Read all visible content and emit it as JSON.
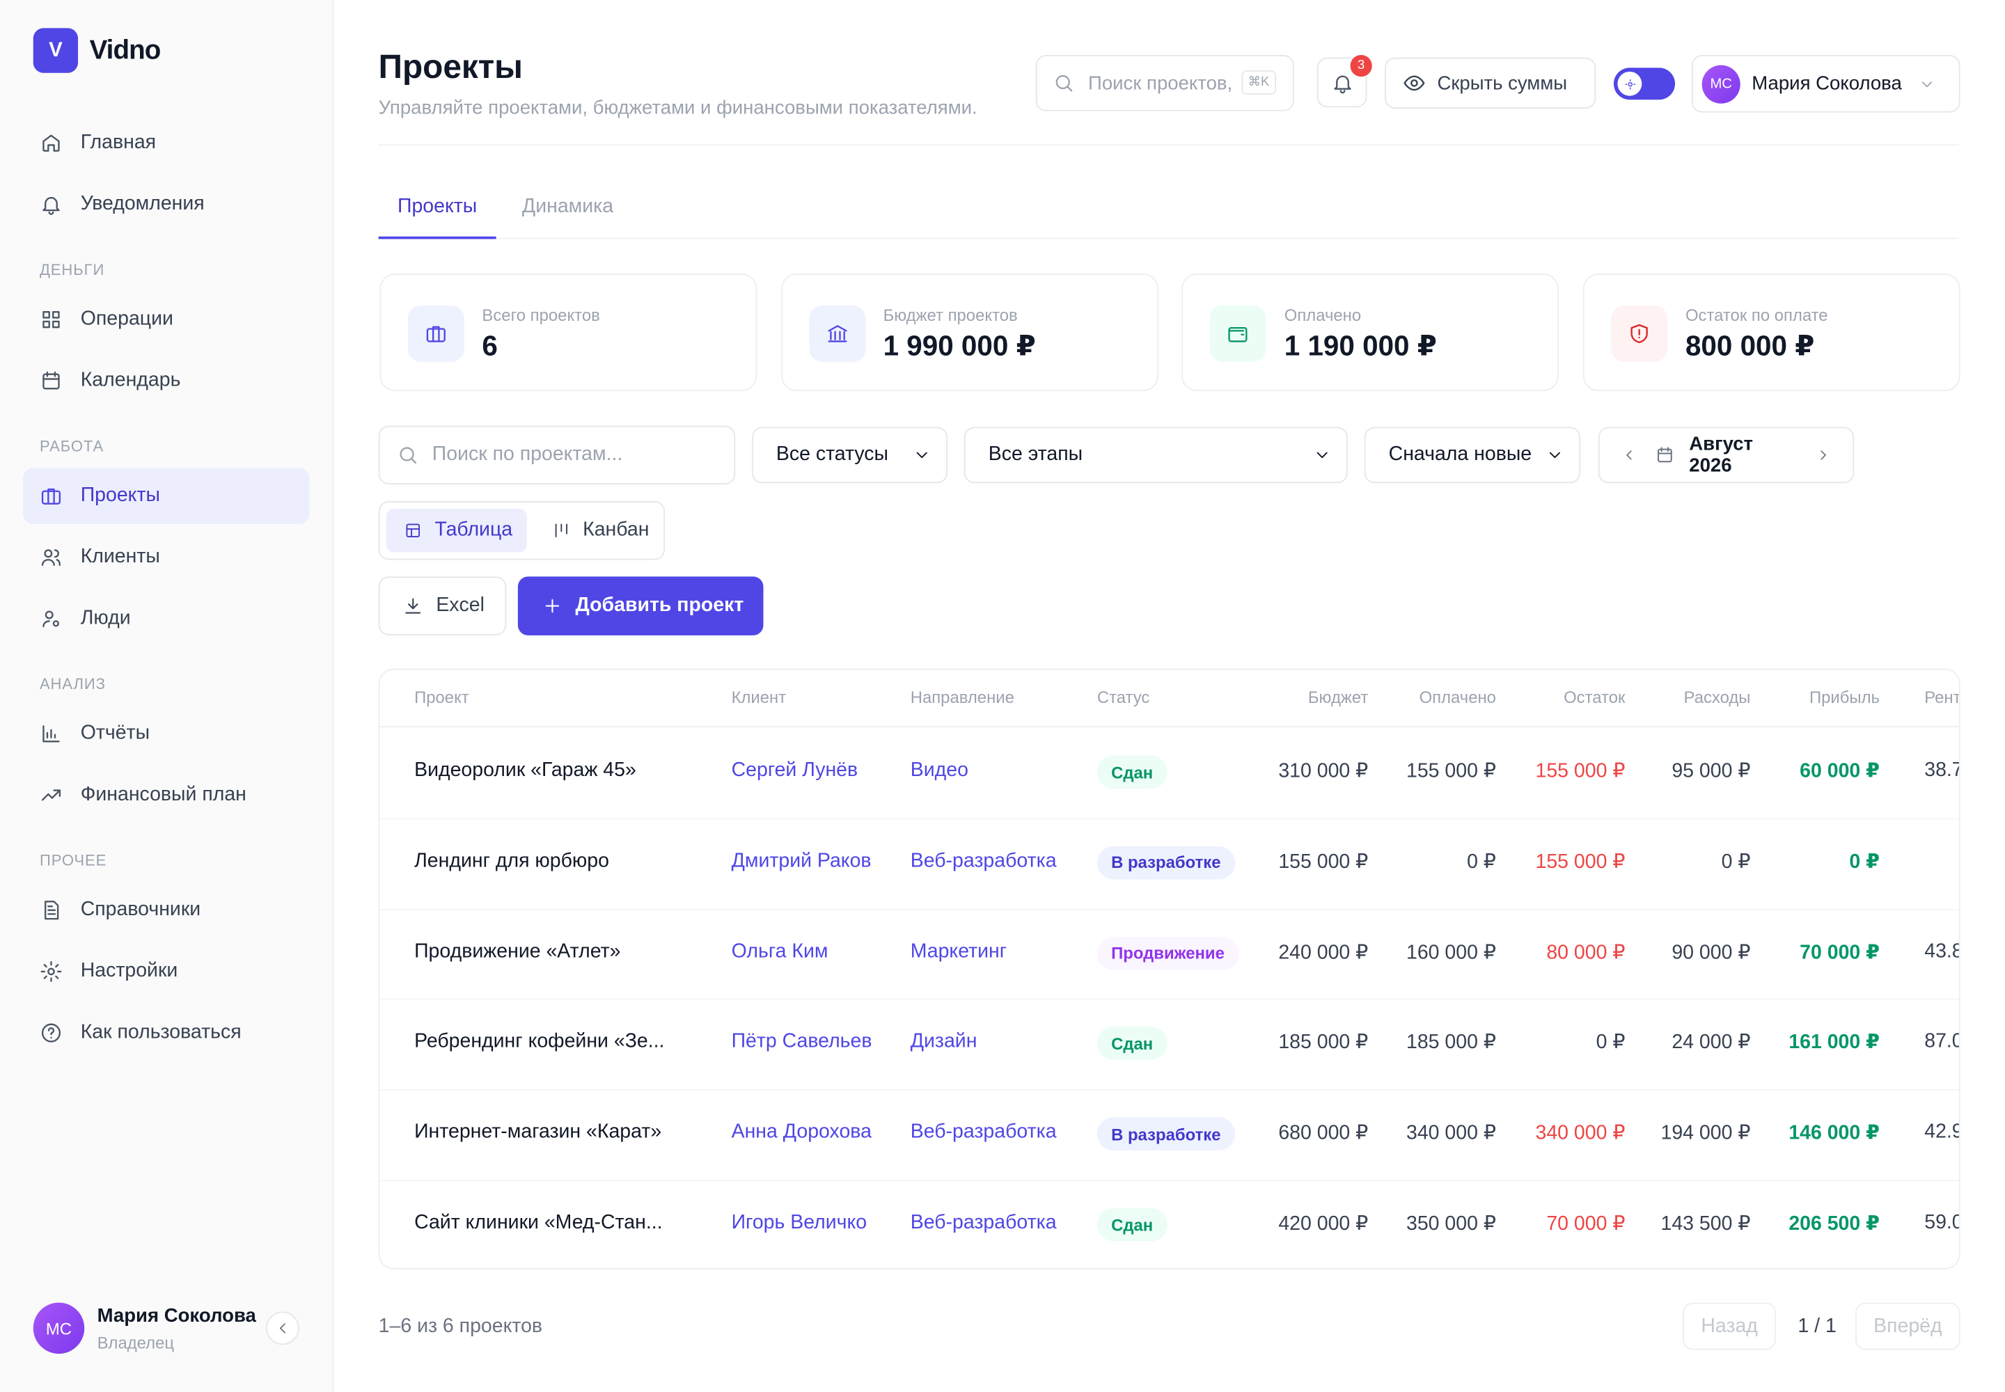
{
  "brand": {
    "logo": "V",
    "name": "Vidno"
  },
  "sidebar": {
    "sections": [
      {
        "items": [
          {
            "label": "Главная",
            "icon": "home"
          },
          {
            "label": "Уведомления",
            "icon": "bell"
          }
        ]
      },
      {
        "title": "ДЕНЬГИ",
        "items": [
          {
            "label": "Операции",
            "icon": "grid"
          },
          {
            "label": "Календарь",
            "icon": "cal"
          }
        ]
      },
      {
        "title": "РАБОТА",
        "items": [
          {
            "label": "Проекты",
            "icon": "case",
            "active": true
          },
          {
            "label": "Клиенты",
            "icon": "users"
          },
          {
            "label": "Люди",
            "icon": "user"
          }
        ]
      },
      {
        "title": "АНАЛИЗ",
        "items": [
          {
            "label": "Отчёты",
            "icon": "chart"
          },
          {
            "label": "Финансовый план",
            "icon": "trend"
          }
        ]
      },
      {
        "title": "ПРОЧЕЕ",
        "items": [
          {
            "label": "Справочники",
            "icon": "doc"
          },
          {
            "label": "Настройки",
            "icon": "gear"
          },
          {
            "label": "Как пользоваться",
            "icon": "help"
          }
        ]
      }
    ]
  },
  "user": {
    "initials": "МС",
    "name": "Мария Соколова",
    "role": "Владелец"
  },
  "header": {
    "title": "Проекты",
    "subtitle": "Управляйте проектами, бюджетами и финансовыми показателями.",
    "search_placeholder": "Поиск проектов,",
    "shortcut": "⌘K",
    "notifications": 3,
    "hide_sums": "Скрыть суммы",
    "user_initials": "МС",
    "user_name": "Мария Соколова"
  },
  "tabs": [
    {
      "label": "Проекты",
      "active": true
    },
    {
      "label": "Динамика"
    }
  ],
  "stats": [
    {
      "label": "Всего проектов",
      "value": "6",
      "tone": "blue",
      "icon": "case"
    },
    {
      "label": "Бюджет проектов",
      "value": "1 990 000 ₽",
      "tone": "blue",
      "icon": "bank"
    },
    {
      "label": "Оплачено",
      "value": "1 190 000 ₽",
      "tone": "green",
      "icon": "wallet"
    },
    {
      "label": "Остаток по оплате",
      "value": "800 000 ₽",
      "tone": "red",
      "icon": "shield"
    }
  ],
  "filters": {
    "search_placeholder": "Поиск по проектам...",
    "status": "Все статусы",
    "stage": "Все этапы",
    "sort": "Сначала новые",
    "period": "Август 2026"
  },
  "views": [
    {
      "label": "Таблица",
      "active": true
    },
    {
      "label": "Канбан"
    }
  ],
  "actions": {
    "excel": "Excel",
    "add": "Добавить проект"
  },
  "table": {
    "columns": [
      "Проект",
      "Клиент",
      "Направление",
      "Статус",
      "Бюджет",
      "Оплачено",
      "Остаток",
      "Расходы",
      "Прибыль",
      "Рента"
    ],
    "rows": [
      {
        "project": "Видеоролик «Гараж 45»",
        "client": "Сергей Лунёв",
        "direction": "Видео",
        "status": "Сдан",
        "status_tone": "green",
        "budget": "310 000 ₽",
        "paid": "155 000 ₽",
        "rest": "155 000 ₽",
        "rest_tone": "red",
        "expenses": "95 000 ₽",
        "profit": "60 000 ₽",
        "margin": "38.7"
      },
      {
        "project": "Лендинг для юрбюро",
        "client": "Дмитрий Раков",
        "direction": "Веб-разработка",
        "status": "В разработке",
        "status_tone": "blue",
        "budget": "155 000 ₽",
        "paid": "0 ₽",
        "rest": "155 000 ₽",
        "rest_tone": "red",
        "expenses": "0 ₽",
        "profit": "0 ₽"
      },
      {
        "project": "Продвижение «Атлет»",
        "client": "Ольга Ким",
        "direction": "Маркетинг",
        "status": "Продвижение",
        "status_tone": "purple",
        "budget": "240 000 ₽",
        "paid": "160 000 ₽",
        "rest": "80 000 ₽",
        "rest_tone": "red",
        "expenses": "90 000 ₽",
        "profit": "70 000 ₽",
        "margin": "43.8"
      },
      {
        "project": "Ребрендинг кофейни «Зе...",
        "client": "Пётр Савельев",
        "direction": "Дизайн",
        "status": "Сдан",
        "status_tone": "green",
        "budget": "185 000 ₽",
        "paid": "185 000 ₽",
        "rest": "0 ₽",
        "rest_tone": "plain",
        "expenses": "24 000 ₽",
        "profit": "161 000 ₽",
        "margin": "87.0"
      },
      {
        "project": "Интернет-магазин «Карат»",
        "client": "Анна Дорохова",
        "direction": "Веб-разработка",
        "status": "В разработке",
        "status_tone": "blue",
        "budget": "680 000 ₽",
        "paid": "340 000 ₽",
        "rest": "340 000 ₽",
        "rest_tone": "red",
        "expenses": "194 000 ₽",
        "profit": "146 000 ₽",
        "margin": "42.9"
      },
      {
        "project": "Сайт клиники «Мед-Стан...",
        "client": "Игорь Величко",
        "direction": "Веб-разработка",
        "status": "Сдан",
        "status_tone": "green",
        "budget": "420 000 ₽",
        "paid": "350 000 ₽",
        "rest": "70 000 ₽",
        "rest_tone": "red",
        "expenses": "143 500 ₽",
        "profit": "206 500 ₽",
        "margin": "59.0"
      }
    ]
  },
  "footer": {
    "count": "1–6 из 6 проектов",
    "prev": "Назад",
    "page": "1 / 1",
    "next": "Вперёд"
  }
}
